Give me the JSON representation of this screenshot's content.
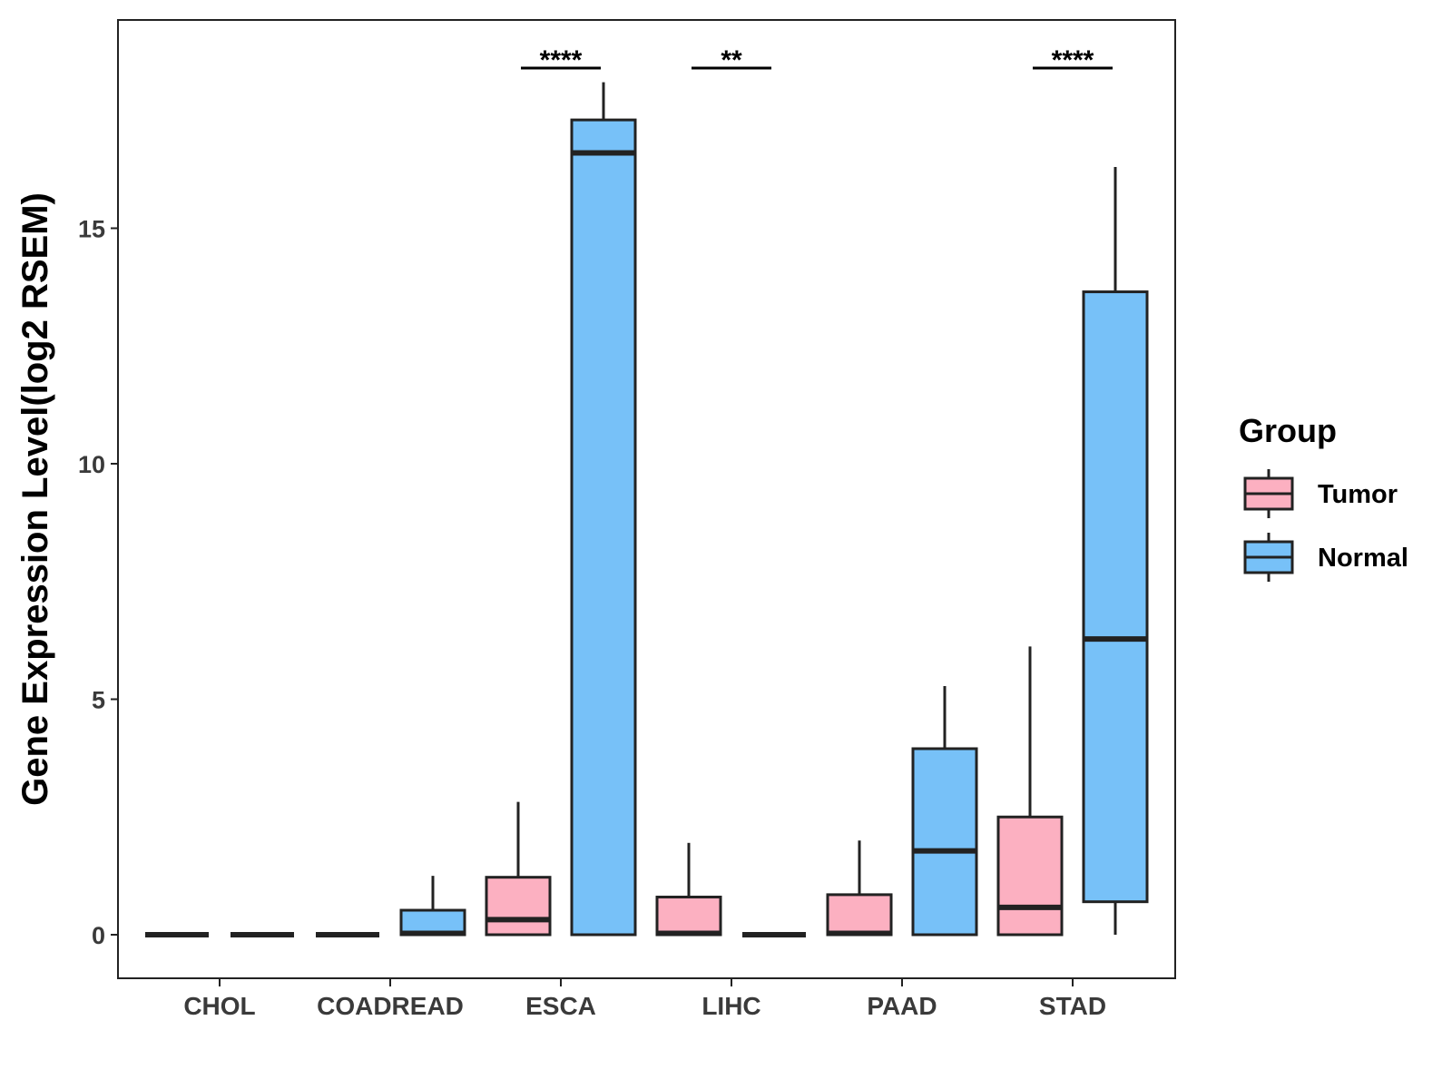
{
  "chart_data": {
    "type": "boxplot",
    "ylabel": "Gene Expression Level(log2 RSEM)",
    "xlabel": "",
    "ylim": [
      -0.9,
      19.5
    ],
    "yticks": [
      0,
      5,
      10,
      15
    ],
    "categories": [
      "CHOL",
      "COADREAD",
      "ESCA",
      "LIHC",
      "PAAD",
      "STAD"
    ],
    "legend": {
      "title": "Group",
      "position": "right",
      "entries": [
        {
          "name": "Tumor",
          "color": "#FCB0C1"
        },
        {
          "name": "Normal",
          "color": "#77C1F8"
        }
      ]
    },
    "grid": false,
    "series": [
      {
        "name": "Tumor",
        "color": "#FCB0C1",
        "boxes": [
          {
            "min": 0,
            "q1": 0,
            "median": 0,
            "q3": 0,
            "max": 0
          },
          {
            "min": 0,
            "q1": 0,
            "median": 0,
            "q3": 0,
            "max": 0
          },
          {
            "min": 0,
            "q1": 0,
            "median": 0.32,
            "q3": 1.22,
            "max": 2.82
          },
          {
            "min": 0,
            "q1": 0,
            "median": 0.03,
            "q3": 0.8,
            "max": 1.95
          },
          {
            "min": 0,
            "q1": 0,
            "median": 0.03,
            "q3": 0.85,
            "max": 2.0
          },
          {
            "min": 0,
            "q1": 0,
            "median": 0.58,
            "q3": 2.5,
            "max": 6.12
          }
        ]
      },
      {
        "name": "Normal",
        "color": "#77C1F8",
        "boxes": [
          {
            "min": 0,
            "q1": 0,
            "median": 0,
            "q3": 0,
            "max": 0
          },
          {
            "min": 0,
            "q1": 0,
            "median": 0.03,
            "q3": 0.52,
            "max": 1.25
          },
          {
            "min": 0,
            "q1": 0,
            "median": 16.6,
            "q3": 17.3,
            "max": 18.1
          },
          {
            "min": 0,
            "q1": 0,
            "median": 0,
            "q3": 0,
            "max": 0
          },
          {
            "min": 0,
            "q1": 0,
            "median": 1.78,
            "q3": 3.95,
            "max": 5.28
          },
          {
            "min": 0,
            "q1": 0.7,
            "median": 6.28,
            "q3": 13.65,
            "max": 16.3
          }
        ]
      }
    ],
    "annotations": [
      {
        "category": "ESCA",
        "text": "****"
      },
      {
        "category": "LIHC",
        "text": "**"
      },
      {
        "category": "STAD",
        "text": "****"
      }
    ]
  }
}
